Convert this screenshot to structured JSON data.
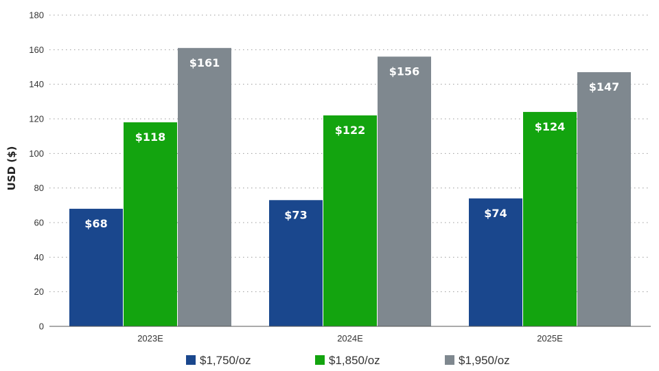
{
  "chart_data": {
    "type": "bar",
    "ylabel": "USD ($)",
    "xlabel": "",
    "ylim": [
      0,
      180
    ],
    "yticks": [
      0,
      20,
      40,
      60,
      80,
      100,
      120,
      140,
      160,
      180
    ],
    "grid": "horizontal-dotted",
    "legend_position": "bottom",
    "categories": [
      "2023E",
      "2024E",
      "2025E"
    ],
    "series": [
      {
        "name": "$1,750/oz",
        "color": "#1a478d",
        "values": [
          68,
          73,
          74
        ],
        "labels": [
          "$68",
          "$73",
          "$74"
        ]
      },
      {
        "name": "$1,850/oz",
        "color": "#13a40f",
        "values": [
          118,
          122,
          124
        ],
        "labels": [
          "$118",
          "$122",
          "$124"
        ]
      },
      {
        "name": "$1,950/oz",
        "color": "#7f888f",
        "values": [
          161,
          156,
          147
        ],
        "labels": [
          "$161",
          "$156",
          "$147"
        ]
      }
    ]
  }
}
